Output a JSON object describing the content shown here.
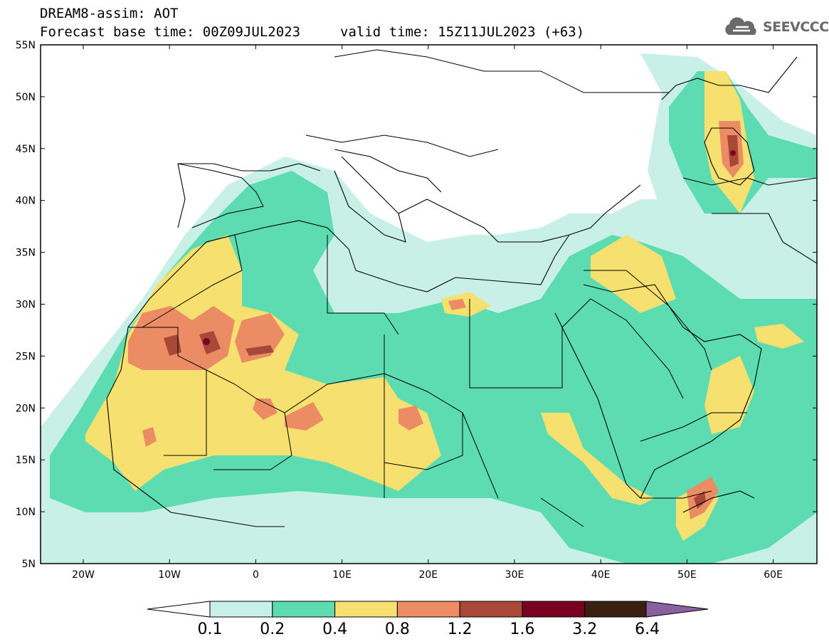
{
  "header": {
    "title": "DREAM8-assim: AOT",
    "base_time": "Forecast base time: 00Z09JUL2023",
    "valid_time": "valid time: 15Z11JUL2023 (+63)"
  },
  "logo": {
    "text": "SEEVCCC",
    "icon": "cloud-icon"
  },
  "axes": {
    "lat_labels": [
      "55N",
      "50N",
      "45N",
      "40N",
      "35N",
      "30N",
      "25N",
      "20N",
      "15N",
      "10N",
      "5N"
    ],
    "lon_labels": [
      "20W",
      "10W",
      "0",
      "10E",
      "20E",
      "30E",
      "40E",
      "50E",
      "60E"
    ]
  },
  "colorbar": {
    "labels": [
      "0.1",
      "0.2",
      "0.4",
      "0.8",
      "1.2",
      "1.6",
      "3.2",
      "6.4"
    ],
    "colors": [
      "#c8f0e6",
      "#5cdcb0",
      "#f5e070",
      "#eb8c64",
      "#a84838",
      "#7a0020",
      "#3a2010",
      "#8a60a0"
    ],
    "under_color": "#ffffff"
  }
}
